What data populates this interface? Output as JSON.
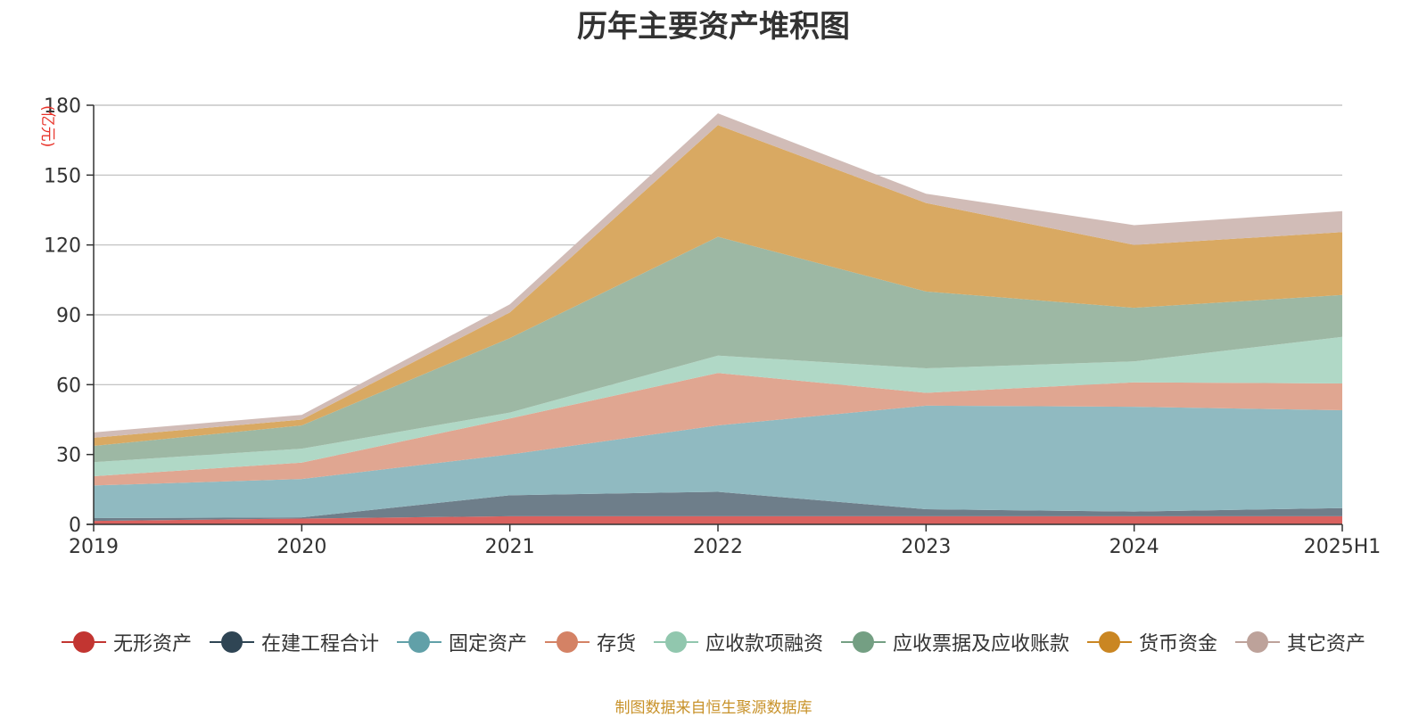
{
  "chart_data": {
    "type": "area",
    "title": "历年主要资产堆积图",
    "ylabel": "(亿元)",
    "source": "制图数据来自恒生聚源数据库",
    "categories": [
      "2019",
      "2020",
      "2021",
      "2022",
      "2023",
      "2024",
      "2025H1"
    ],
    "ylim": [
      0,
      180
    ],
    "yticks": [
      0,
      30,
      60,
      90,
      120,
      150,
      180
    ],
    "stacked": true,
    "grid": true,
    "legend_position": "bottom",
    "series": [
      {
        "name": "无形资产",
        "color": "#c23531",
        "fill": "#d9625f",
        "values": [
          1.5,
          2.5,
          3.5,
          3.5,
          3.5,
          3.5,
          3.5
        ]
      },
      {
        "name": "在建工程合计",
        "color": "#2f4554",
        "fill": "#6e7e8a",
        "values": [
          1.2,
          0.5,
          9.0,
          10.5,
          3.0,
          2.0,
          3.5
        ]
      },
      {
        "name": "固定资产",
        "color": "#61a0a8",
        "fill": "#90bac1",
        "values": [
          14.0,
          16.5,
          17.5,
          28.5,
          44.5,
          45.0,
          42.0
        ]
      },
      {
        "name": "存货",
        "color": "#d48265",
        "fill": "#e0a691",
        "values": [
          4.0,
          7.0,
          15.5,
          22.5,
          5.5,
          10.5,
          11.5
        ]
      },
      {
        "name": "应收款项融资",
        "color": "#91c7ae",
        "fill": "#b0d8c6",
        "values": [
          6.0,
          6.0,
          2.5,
          7.5,
          10.5,
          9.0,
          20.0
        ]
      },
      {
        "name": "应收票据及应收账款",
        "color": "#749f83",
        "fill": "#9db8a4",
        "values": [
          7.0,
          10.0,
          32.0,
          51.0,
          33.0,
          23.0,
          18.0
        ]
      },
      {
        "name": "货币资金",
        "color": "#ca8622",
        "fill": "#d9a962",
        "values": [
          3.5,
          2.5,
          11.0,
          48.0,
          38.0,
          27.0,
          27.0
        ]
      },
      {
        "name": "其它资产",
        "color": "#bda29a",
        "fill": "#d1bcb7",
        "values": [
          2.3,
          2.0,
          3.5,
          5.0,
          4.0,
          8.5,
          9.0
        ]
      }
    ]
  }
}
